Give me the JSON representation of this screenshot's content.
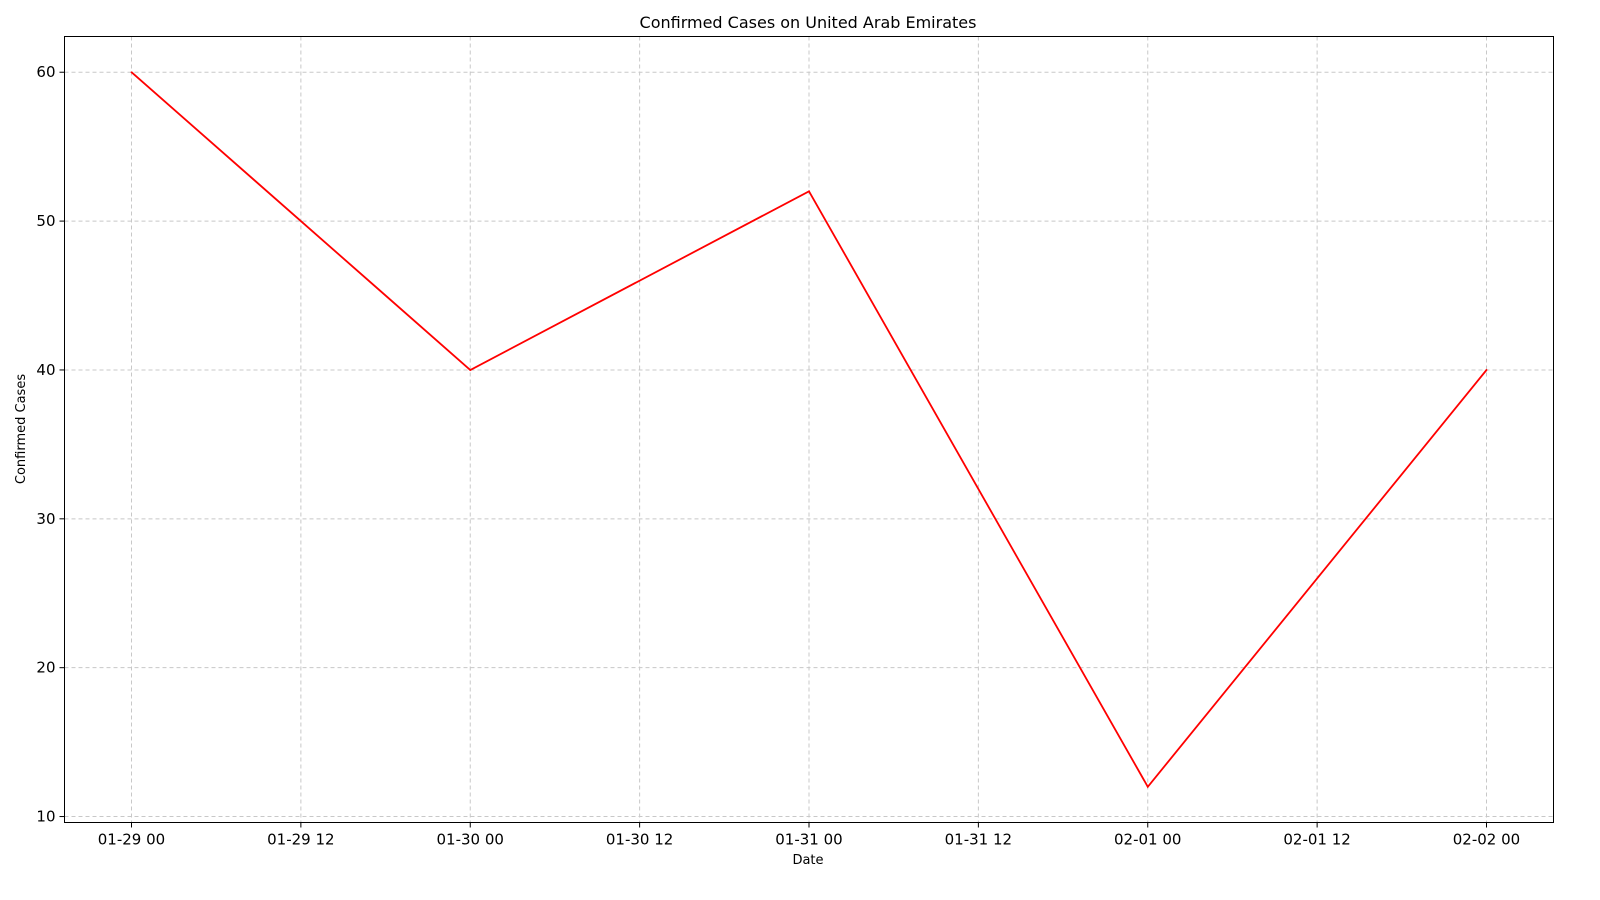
{
  "chart_data": {
    "type": "line",
    "title": "Confirmed Cases on United Arab Emirates",
    "xlabel": "Date",
    "ylabel": "Confirmed Cases",
    "x_ticks": [
      "01-29 00",
      "01-29 12",
      "01-30 00",
      "01-30 12",
      "01-31 00",
      "01-31 12",
      "02-01 00",
      "02-01 12",
      "02-02 00"
    ],
    "y_ticks": [
      10,
      20,
      30,
      40,
      50,
      60
    ],
    "ylim": [
      9.6,
      62.4
    ],
    "grid": true,
    "line_color": "#ff0000",
    "series": [
      {
        "x": [
          "01-29 00",
          "01-30 00",
          "01-31 00",
          "02-01 00",
          "02-02 00"
        ],
        "values": [
          60,
          40,
          52,
          12,
          40
        ]
      }
    ]
  }
}
